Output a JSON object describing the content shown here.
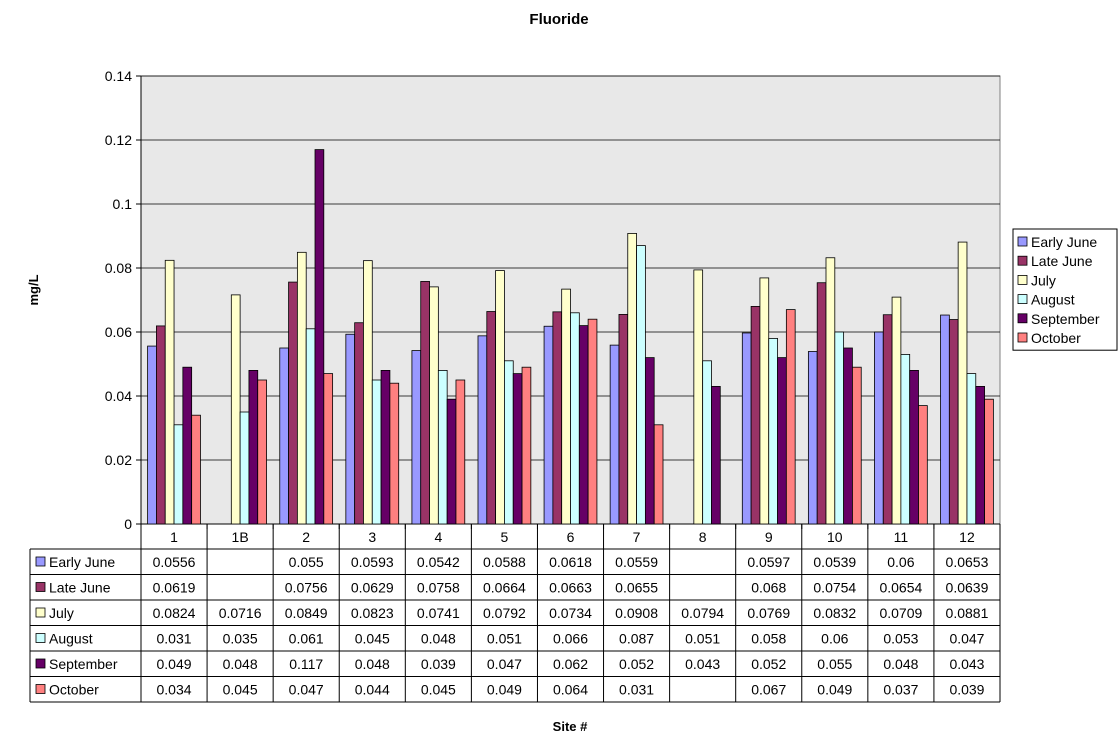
{
  "chart_data": {
    "type": "bar",
    "title": "Fluoride",
    "xlabel": "Site #",
    "ylabel": "mg/L",
    "ylim": [
      0,
      0.14
    ],
    "yticks": [
      "0",
      "0.02",
      "0.04",
      "0.06",
      "0.08",
      "0.1",
      "0.12",
      "0.14"
    ],
    "grid": true,
    "legend_position": "right",
    "plot_background": "#e8e8e8",
    "categories": [
      "1",
      "1B",
      "2",
      "3",
      "4",
      "5",
      "6",
      "7",
      "8",
      "9",
      "10",
      "11",
      "12"
    ],
    "series": [
      {
        "name": "Early June",
        "color": "#9999ff",
        "values": [
          0.0556,
          null,
          0.055,
          0.0593,
          0.0542,
          0.0588,
          0.0618,
          0.0559,
          null,
          0.0597,
          0.0539,
          0.06,
          0.0653
        ],
        "labels": [
          "0.0556",
          "",
          "0.055",
          "0.0593",
          "0.0542",
          "0.0588",
          "0.0618",
          "0.0559",
          "",
          "0.0597",
          "0.0539",
          "0.06",
          "0.0653"
        ]
      },
      {
        "name": "Late June",
        "color": "#993366",
        "values": [
          0.0619,
          null,
          0.0756,
          0.0629,
          0.0758,
          0.0664,
          0.0663,
          0.0655,
          null,
          0.068,
          0.0754,
          0.0654,
          0.0639
        ],
        "labels": [
          "0.0619",
          "",
          "0.0756",
          "0.0629",
          "0.0758",
          "0.0664",
          "0.0663",
          "0.0655",
          "",
          "0.068",
          "0.0754",
          "0.0654",
          "0.0639"
        ]
      },
      {
        "name": "July",
        "color": "#ffffcc",
        "values": [
          0.0824,
          0.0716,
          0.0849,
          0.0823,
          0.0741,
          0.0792,
          0.0734,
          0.0908,
          0.0794,
          0.0769,
          0.0832,
          0.0709,
          0.0881
        ],
        "labels": [
          "0.0824",
          "0.0716",
          "0.0849",
          "0.0823",
          "0.0741",
          "0.0792",
          "0.0734",
          "0.0908",
          "0.0794",
          "0.0769",
          "0.0832",
          "0.0709",
          "0.0881"
        ]
      },
      {
        "name": "August",
        "color": "#ccffff",
        "values": [
          0.031,
          0.035,
          0.061,
          0.045,
          0.048,
          0.051,
          0.066,
          0.087,
          0.051,
          0.058,
          0.06,
          0.053,
          0.047
        ],
        "labels": [
          "0.031",
          "0.035",
          "0.061",
          "0.045",
          "0.048",
          "0.051",
          "0.066",
          "0.087",
          "0.051",
          "0.058",
          "0.06",
          "0.053",
          "0.047"
        ]
      },
      {
        "name": "September",
        "color": "#660066",
        "values": [
          0.049,
          0.048,
          0.117,
          0.048,
          0.039,
          0.047,
          0.062,
          0.052,
          0.043,
          0.052,
          0.055,
          0.048,
          0.043
        ],
        "labels": [
          "0.049",
          "0.048",
          "0.117",
          "0.048",
          "0.039",
          "0.047",
          "0.062",
          "0.052",
          "0.043",
          "0.052",
          "0.055",
          "0.048",
          "0.043"
        ]
      },
      {
        "name": "October",
        "color": "#ff8080",
        "values": [
          0.034,
          0.045,
          0.047,
          0.044,
          0.045,
          0.049,
          0.064,
          0.031,
          null,
          0.067,
          0.049,
          0.037,
          0.039
        ],
        "labels": [
          "0.034",
          "0.045",
          "0.047",
          "0.044",
          "0.045",
          "0.049",
          "0.064",
          "0.031",
          "",
          "0.067",
          "0.049",
          "0.037",
          "0.039"
        ]
      }
    ]
  }
}
